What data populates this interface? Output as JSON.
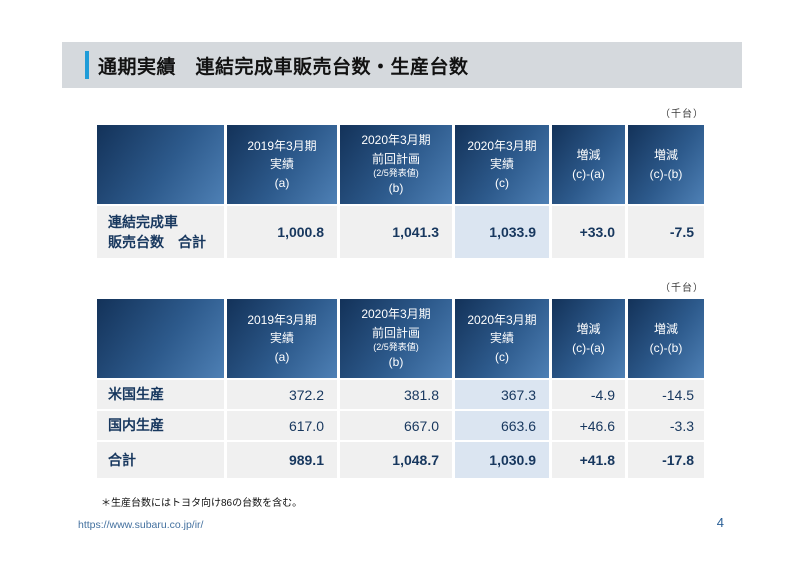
{
  "title": {
    "text": "通期実績　連結完成車販売台数・生産台数",
    "accent_color": "#1f9cd8",
    "band_color": "#d5d9dd"
  },
  "unit_label": "（千台）",
  "headers": {
    "blank": "",
    "col_a": "2019年3月期\n実績\n(a)",
    "col_b_main": "2020年3月期\n前回計画",
    "col_b_note": "(2/5発表値)",
    "col_b_tail": "(b)",
    "col_c": "2020年3月期\n実績\n(c)",
    "col_d": "増減\n(c)-(a)",
    "col_e": "増減\n(c)-(b)"
  },
  "sales_table": {
    "rows": [
      {
        "label": "連結完成車\n販売台数　合計",
        "a": "1,000.8",
        "b": "1,041.3",
        "c": "1,033.9",
        "d": "+33.0",
        "e": "-7.5"
      }
    ]
  },
  "production_table": {
    "rows": [
      {
        "label": "米国生産",
        "a": "372.2",
        "b": "381.8",
        "c": "367.3",
        "d": "-4.9",
        "e": "-14.5"
      },
      {
        "label": "国内生産",
        "a": "617.0",
        "b": "667.0",
        "c": "663.6",
        "d": "+46.6",
        "e": "-3.3"
      },
      {
        "label": "合計",
        "a": "989.1",
        "b": "1,048.7",
        "c": "1,030.9",
        "d": "+41.8",
        "e": "-17.8"
      }
    ]
  },
  "footnote": "＊生産台数にはトヨタ向け86の台数を含む。",
  "footer": {
    "url": "https://www.subaru.co.jp/ir/",
    "page_number": "4"
  },
  "colors": {
    "header_gradient_start": "#133259",
    "header_gradient_end": "#4e80b5",
    "row_bg": "#f0f0f0",
    "highlight_bg": "#dbe5f1",
    "value_text": "#17375e",
    "accent_bar": "#1f9cd8",
    "link": "#44719f"
  }
}
